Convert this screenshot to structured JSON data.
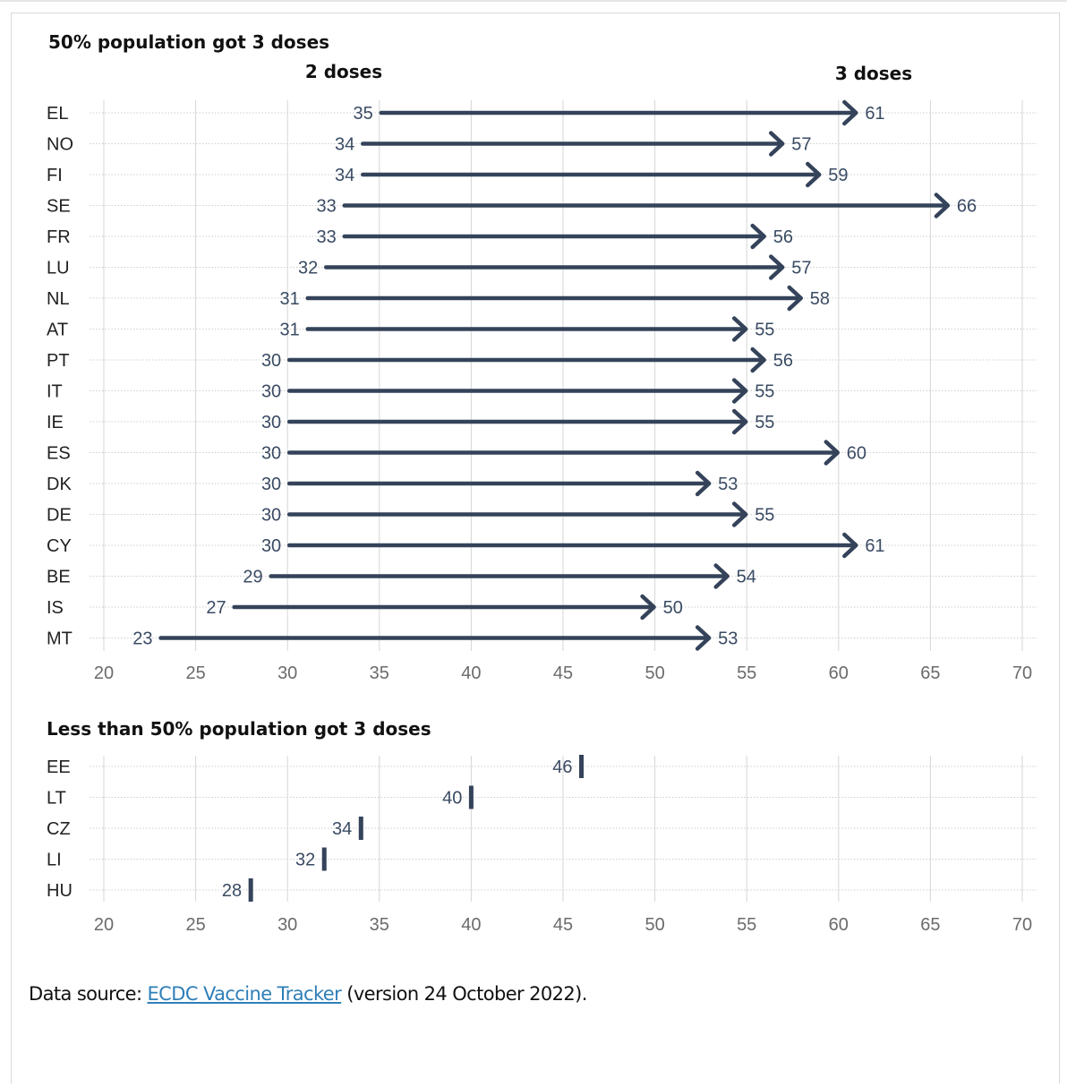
{
  "chart_data": [
    {
      "type": "arrow",
      "title": "50% population got 3 doses",
      "start_label": "2 doses",
      "end_label": "3 doses",
      "xlim": [
        20,
        70
      ],
      "xticks": [
        "20",
        "25",
        "30",
        "35",
        "40",
        "45",
        "50",
        "55",
        "60",
        "65",
        "70"
      ],
      "grid": true,
      "categories": [
        "EL",
        "NO",
        "FI",
        "SE",
        "FR",
        "LU",
        "NL",
        "AT",
        "PT",
        "IT",
        "IE",
        "ES",
        "DK",
        "DE",
        "CY",
        "BE",
        "IS",
        "MT"
      ],
      "series": [
        {
          "name": "2 doses",
          "values": [
            35,
            34,
            34,
            33,
            33,
            32,
            31,
            31,
            30,
            30,
            30,
            30,
            30,
            30,
            30,
            29,
            27,
            23
          ]
        },
        {
          "name": "3 doses",
          "values": [
            61,
            57,
            59,
            66,
            56,
            57,
            58,
            55,
            56,
            55,
            55,
            60,
            53,
            55,
            61,
            54,
            50,
            53
          ]
        }
      ],
      "start_labels": [
        "35",
        "34",
        "34",
        "33",
        "33",
        "32",
        "31",
        "31",
        "30",
        "30",
        "30",
        "30",
        "30",
        "30",
        "30",
        "29",
        "27",
        "23"
      ],
      "end_labels": [
        "61",
        "57",
        "59",
        "66",
        "56",
        "57",
        "58",
        "55",
        "56",
        "55",
        "55",
        "60",
        "53",
        "55",
        "61",
        "54",
        "50",
        "53"
      ]
    },
    {
      "type": "scatter",
      "title": "Less than 50% population got 3 doses",
      "xlim": [
        20,
        70
      ],
      "xticks": [
        "20",
        "25",
        "30",
        "35",
        "40",
        "45",
        "50",
        "55",
        "60",
        "65",
        "70"
      ],
      "grid": true,
      "categories": [
        "EE",
        "LT",
        "CZ",
        "LI",
        "HU"
      ],
      "values": [
        46,
        40,
        34,
        32,
        28
      ],
      "labels": [
        "46",
        "40",
        "34",
        "32",
        "28"
      ]
    }
  ],
  "colors": {
    "arrow": "#34435a",
    "grid": "#d6d6d6",
    "gridDot": "#cfcfcf",
    "link": "#2e7fb8"
  },
  "source": {
    "prefix": "Data source: ",
    "link_text": "ECDC Vaccine Tracker",
    "suffix": " (version 24 October 2022)."
  }
}
